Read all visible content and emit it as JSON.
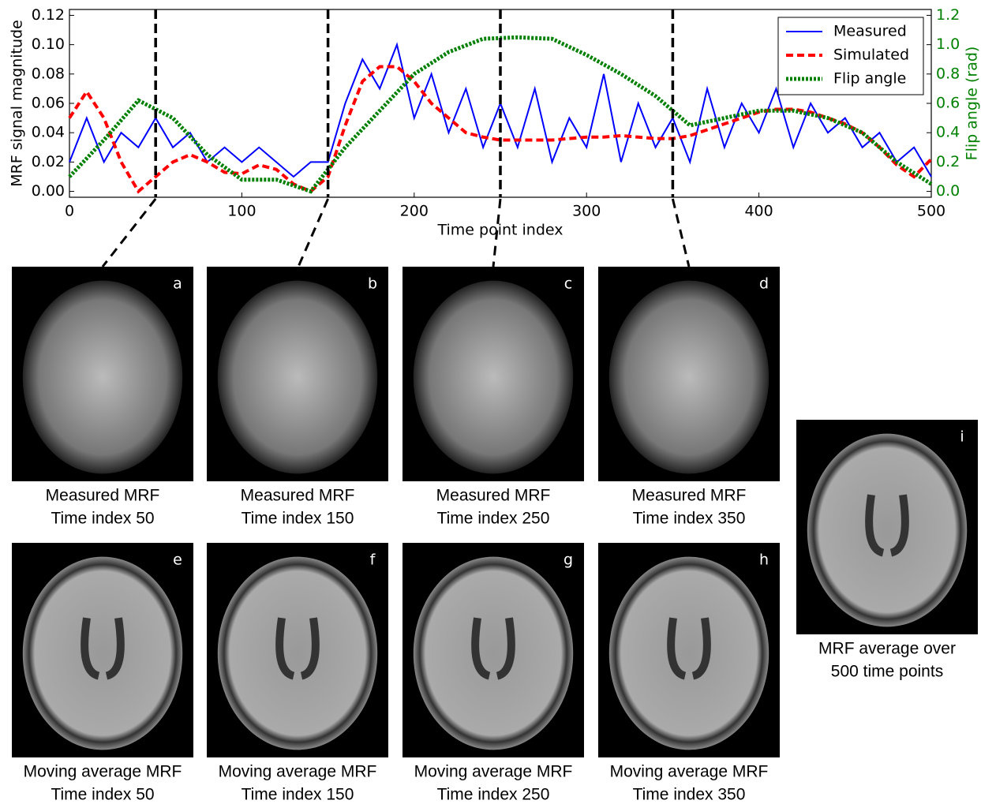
{
  "chart_data": {
    "type": "line",
    "xlabel": "Time point index",
    "ylabel": "MRF signal magnitude",
    "y2label": "Flip angle (rad)",
    "xlim": [
      0,
      500
    ],
    "xticks": [
      0,
      100,
      200,
      300,
      400,
      500
    ],
    "ylim": [
      -0.004,
      0.124
    ],
    "yticks": [
      {
        "value": 0,
        "label": "0.00"
      },
      {
        "value": 0.02,
        "label": "0.02"
      },
      {
        "value": 0.04,
        "label": "0.04"
      },
      {
        "value": 0.06,
        "label": "0.06"
      },
      {
        "value": 0.08,
        "label": "0.08"
      },
      {
        "value": 0.1,
        "label": "0.10"
      },
      {
        "value": 0.12,
        "label": "0.12"
      }
    ],
    "y2lim": [
      -0.04,
      1.24
    ],
    "y2ticks": [
      {
        "value": 0,
        "label": "0.0"
      },
      {
        "value": 0.2,
        "label": "0.2"
      },
      {
        "value": 0.4,
        "label": "0.4"
      },
      {
        "value": 0.6,
        "label": "0.6"
      },
      {
        "value": 0.8,
        "label": "0.8"
      },
      {
        "value": 1,
        "label": "1.0"
      },
      {
        "value": 1.2,
        "label": "1.2"
      }
    ],
    "y2color": "#008000",
    "markers": [
      50,
      150,
      250,
      350
    ],
    "legend": "upper right",
    "series": [
      {
        "name": "Measured",
        "color": "#0000ff",
        "style": "solid",
        "x": [
          0,
          10,
          20,
          30,
          40,
          50,
          60,
          70,
          80,
          90,
          100,
          110,
          120,
          130,
          140,
          150,
          160,
          170,
          180,
          190,
          200,
          210,
          220,
          230,
          240,
          250,
          260,
          270,
          280,
          290,
          300,
          310,
          320,
          330,
          340,
          350,
          360,
          370,
          380,
          390,
          400,
          410,
          420,
          430,
          440,
          450,
          460,
          470,
          480,
          490,
          500
        ],
        "values": [
          0.02,
          0.05,
          0.02,
          0.04,
          0.03,
          0.05,
          0.03,
          0.04,
          0.02,
          0.03,
          0.02,
          0.03,
          0.02,
          0.01,
          0.02,
          0.02,
          0.06,
          0.09,
          0.07,
          0.1,
          0.05,
          0.08,
          0.04,
          0.07,
          0.03,
          0.06,
          0.03,
          0.07,
          0.02,
          0.05,
          0.03,
          0.08,
          0.02,
          0.06,
          0.03,
          0.05,
          0.02,
          0.07,
          0.03,
          0.06,
          0.04,
          0.07,
          0.03,
          0.06,
          0.04,
          0.05,
          0.03,
          0.04,
          0.02,
          0.03,
          0.01
        ]
      },
      {
        "name": "Simulated",
        "color": "#ff0000",
        "style": "dashed",
        "x": [
          0,
          10,
          20,
          30,
          40,
          50,
          60,
          70,
          80,
          90,
          100,
          110,
          120,
          130,
          140,
          150,
          160,
          170,
          180,
          190,
          200,
          210,
          220,
          230,
          240,
          250,
          260,
          270,
          280,
          290,
          300,
          310,
          320,
          330,
          340,
          350,
          360,
          370,
          380,
          390,
          400,
          410,
          420,
          430,
          440,
          450,
          460,
          470,
          480,
          490,
          500
        ],
        "values": [
          0.05,
          0.068,
          0.05,
          0.02,
          0,
          0.01,
          0.02,
          0.025,
          0.02,
          0.013,
          0.012,
          0.018,
          0.015,
          0.005,
          0,
          0.01,
          0.045,
          0.075,
          0.085,
          0.085,
          0.075,
          0.06,
          0.05,
          0.04,
          0.037,
          0.035,
          0.035,
          0.035,
          0.035,
          0.036,
          0.037,
          0.037,
          0.038,
          0.037,
          0.036,
          0.036,
          0.038,
          0.042,
          0.046,
          0.05,
          0.054,
          0.056,
          0.056,
          0.054,
          0.05,
          0.046,
          0.04,
          0.03,
          0.018,
          0.01,
          0.022
        ]
      },
      {
        "name": "Flip angle",
        "color": "#008000",
        "style": "dotted",
        "axis": "y2",
        "x": [
          0,
          20,
          40,
          60,
          80,
          100,
          120,
          140,
          160,
          180,
          200,
          220,
          240,
          260,
          280,
          300,
          320,
          340,
          360,
          380,
          400,
          420,
          440,
          460,
          480,
          500
        ],
        "values": [
          0.1,
          0.35,
          0.62,
          0.5,
          0.25,
          0.08,
          0.08,
          0,
          0.3,
          0.55,
          0.8,
          0.95,
          1.04,
          1.05,
          1.04,
          0.93,
          0.8,
          0.65,
          0.45,
          0.5,
          0.55,
          0.55,
          0.5,
          0.4,
          0.2,
          0.05
        ]
      }
    ]
  },
  "panels": [
    {
      "letter": "a",
      "lines": [
        "Measured MRF",
        "Time index 50"
      ]
    },
    {
      "letter": "b",
      "lines": [
        "Measured MRF",
        "Time index 150"
      ]
    },
    {
      "letter": "c",
      "lines": [
        "Measured MRF",
        "Time index 250"
      ]
    },
    {
      "letter": "d",
      "lines": [
        "Measured MRF",
        "Time index 350"
      ]
    },
    {
      "letter": "e",
      "lines": [
        "Moving average MRF",
        "Time index 50"
      ]
    },
    {
      "letter": "f",
      "lines": [
        "Moving average MRF",
        "Time index 150"
      ]
    },
    {
      "letter": "g",
      "lines": [
        "Moving average MRF",
        "Time index 250"
      ]
    },
    {
      "letter": "h",
      "lines": [
        "Moving average MRF",
        "Time index 350"
      ]
    },
    {
      "letter": "i",
      "lines": [
        "MRF average over",
        "500 time points"
      ]
    }
  ]
}
